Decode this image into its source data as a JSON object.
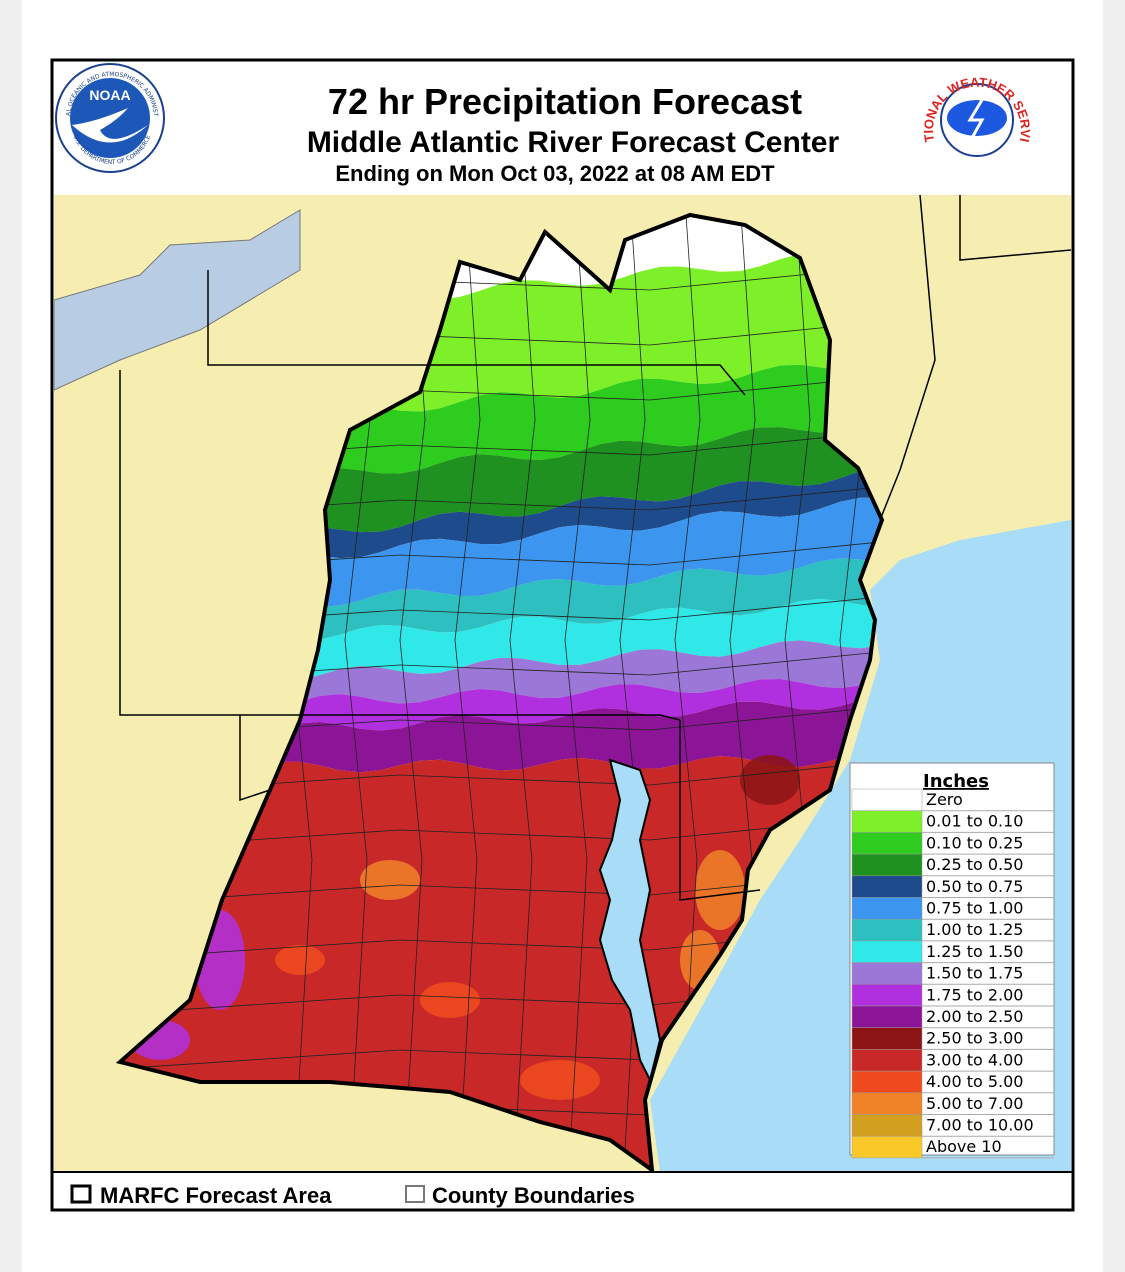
{
  "header": {
    "title": "72 hr Precipitation Forecast",
    "subtitle": "Middle Atlantic River Forecast Center",
    "valid": "Ending on Mon Oct 03, 2022 at 08 AM EDT"
  },
  "logos": {
    "noaa": {
      "label": "NOAA",
      "ring_top": "NATIONAL OCEANIC AND ATMOSPHERIC ADMINISTRATION",
      "ring_bottom": "U.S. DEPARTMENT OF COMMERCE"
    },
    "nws": {
      "label": "NATIONAL WEATHER SERVICE"
    }
  },
  "legend": {
    "title": "Inches",
    "entries": [
      {
        "label": "Zero",
        "color": "#ffffff"
      },
      {
        "label": "0.01 to 0.10",
        "color": "#7ef02a"
      },
      {
        "label": "0.10 to 0.25",
        "color": "#2ecc1e"
      },
      {
        "label": "0.25 to 0.50",
        "color": "#1e9120"
      },
      {
        "label": "0.50 to 0.75",
        "color": "#1e4b8c"
      },
      {
        "label": "0.75 to 1.00",
        "color": "#3c96f0"
      },
      {
        "label": "1.00 to 1.25",
        "color": "#2ec0c0"
      },
      {
        "label": "1.25 to 1.50",
        "color": "#30e8e8"
      },
      {
        "label": "1.50 to 1.75",
        "color": "#9b78d8"
      },
      {
        "label": "1.75 to 2.00",
        "color": "#b030e0"
      },
      {
        "label": "2.00 to 2.50",
        "color": "#8c1496"
      },
      {
        "label": "2.50 to 3.00",
        "color": "#8c1414"
      },
      {
        "label": "3.00 to 4.00",
        "color": "#c82828"
      },
      {
        "label": "4.00 to 5.00",
        "color": "#f04b1e"
      },
      {
        "label": "5.00 to 7.00",
        "color": "#f08228"
      },
      {
        "label": "7.00 to 10.00",
        "color": "#d2a01e"
      },
      {
        "label": "Above 10",
        "color": "#fac828"
      }
    ]
  },
  "footer": {
    "forecast_area": "MARFC Forecast Area",
    "counties": "County Boundaries"
  }
}
